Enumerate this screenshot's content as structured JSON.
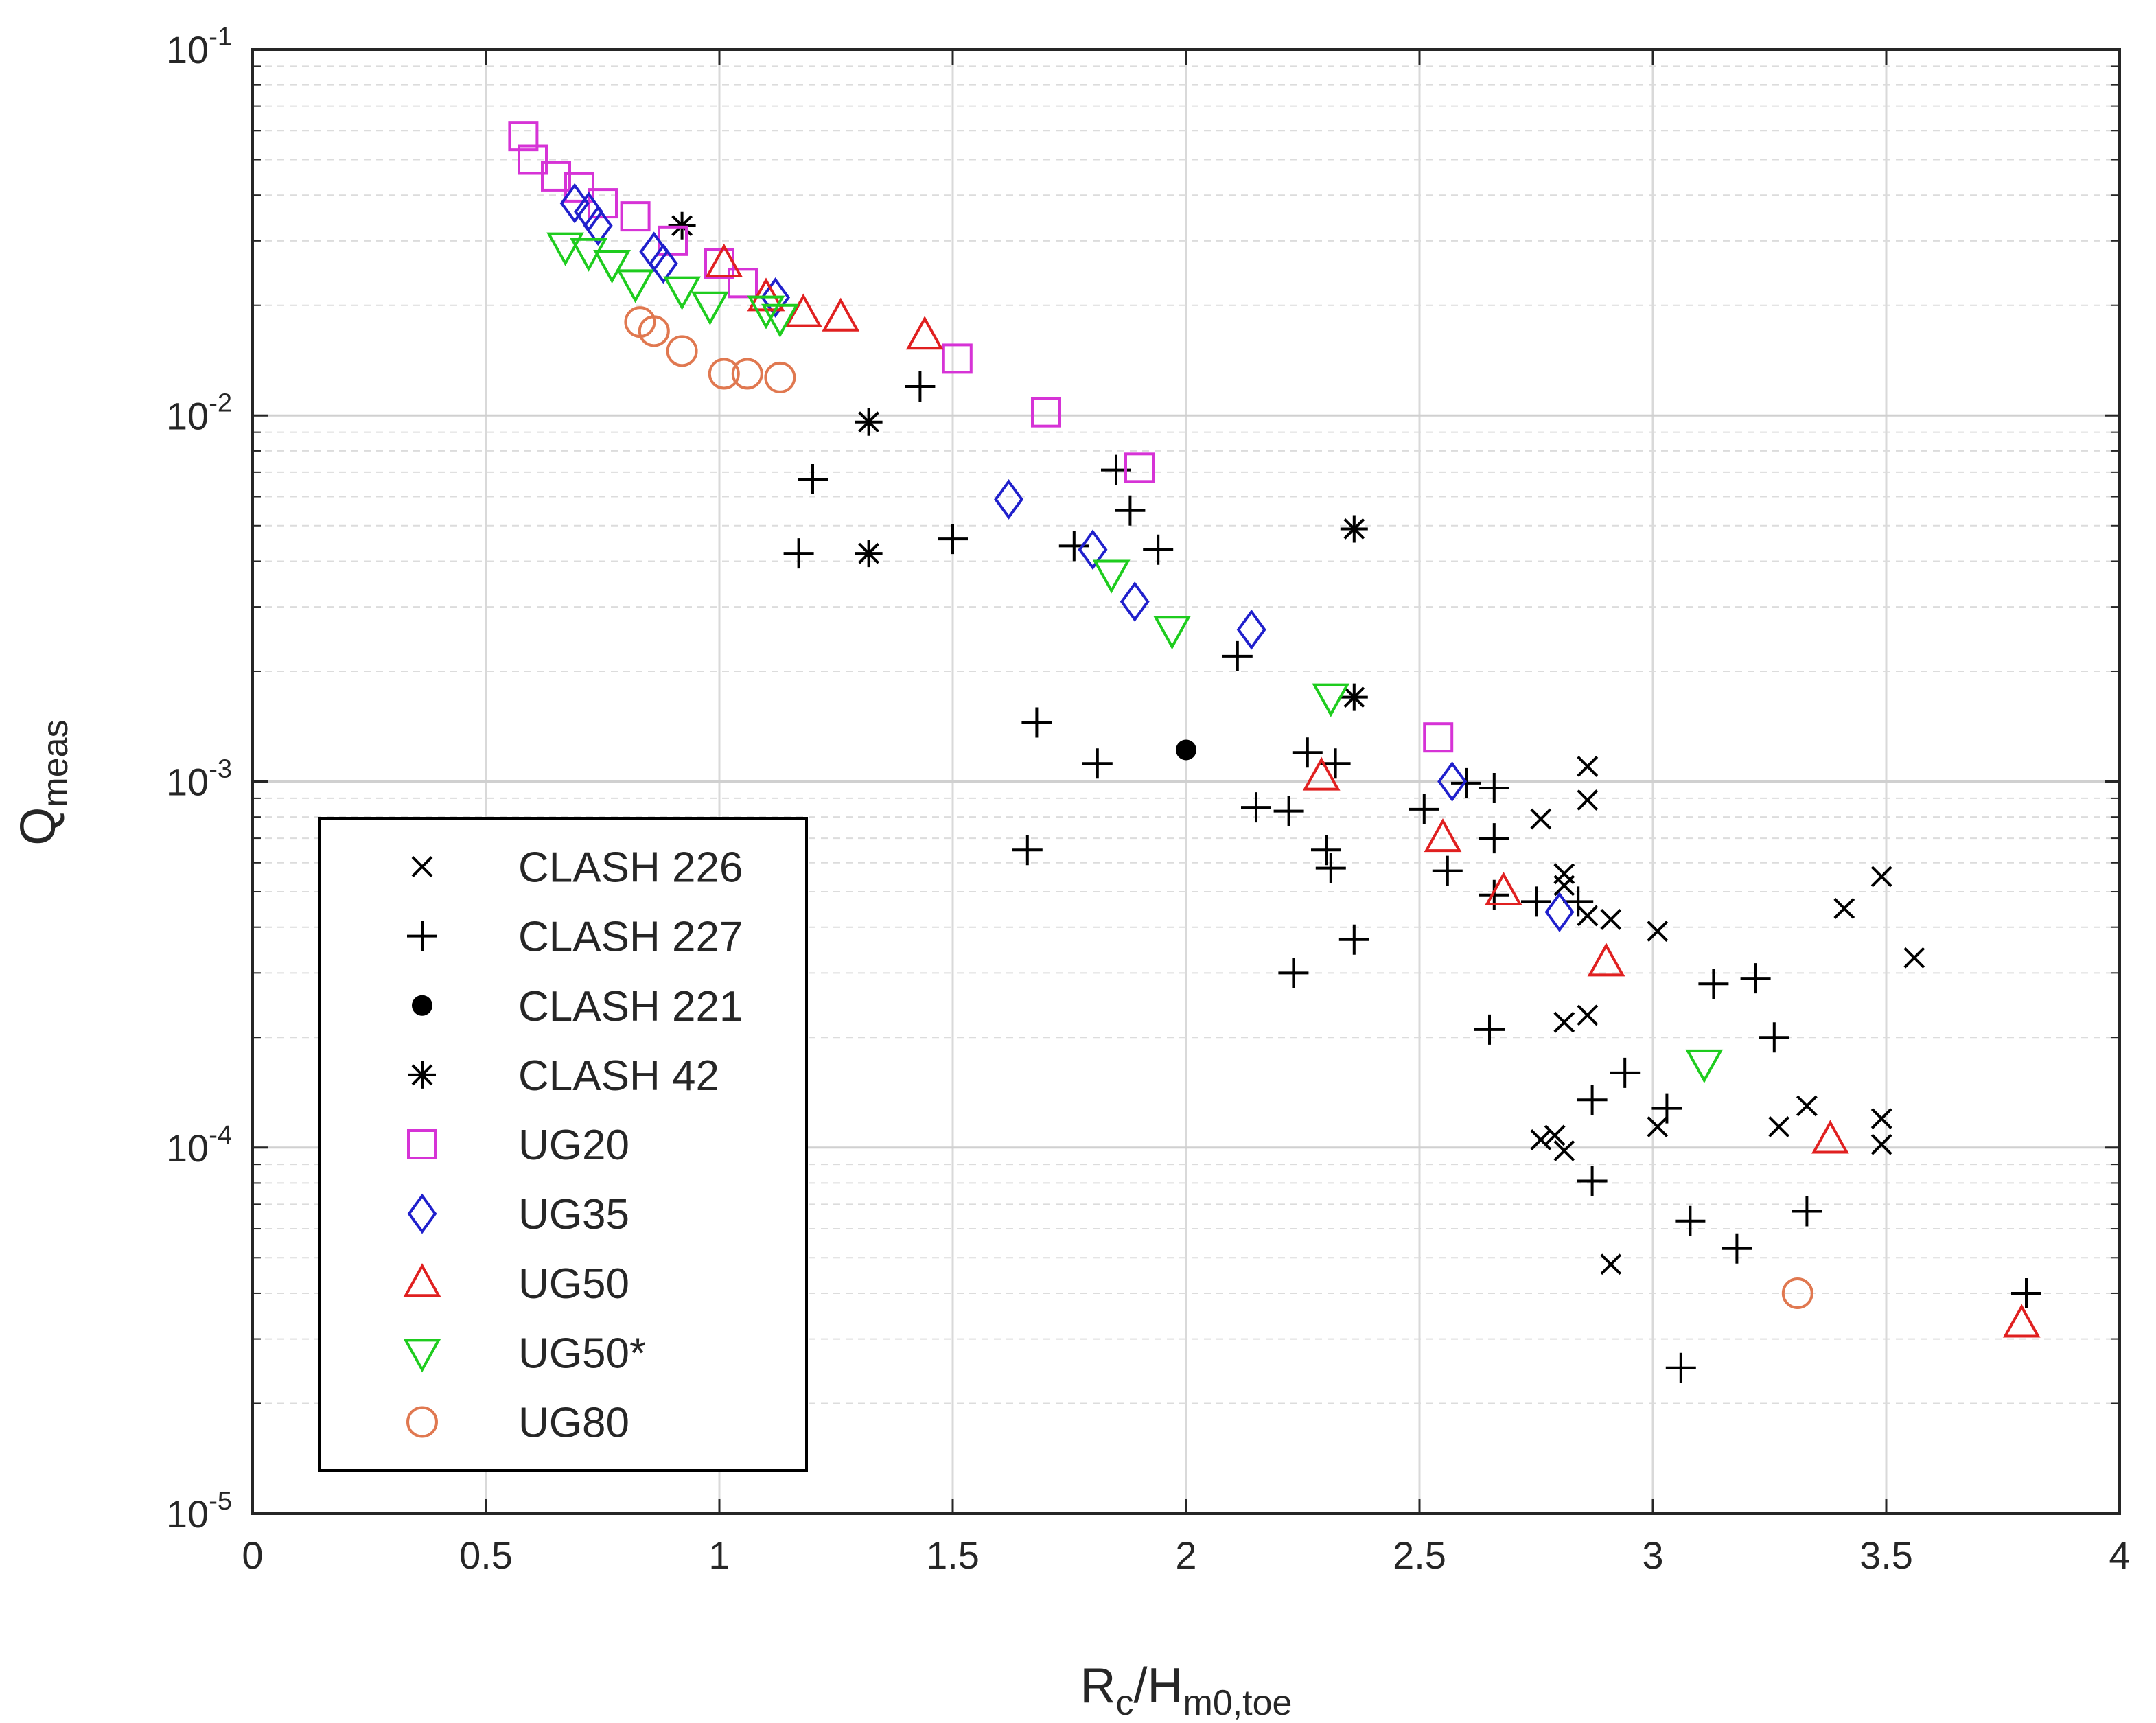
{
  "chart_data": {
    "type": "scatter",
    "title": "",
    "xlabel": "R_c/H_m0,toe",
    "xlabel_parts": {
      "base": "R",
      "sub1": "c",
      "mid": "/H",
      "sub2": "m0,toe"
    },
    "ylabel": "Q_meas",
    "ylabel_parts": {
      "base": "Q",
      "sub": "meas"
    },
    "xscale": "linear",
    "yscale": "log",
    "xlim": [
      0,
      4
    ],
    "ylim": [
      1e-05,
      0.1
    ],
    "xticks": [
      "0",
      "0.5",
      "1",
      "1.5",
      "2",
      "2.5",
      "3",
      "3.5",
      "4"
    ],
    "yticks": [
      {
        "base": "10",
        "exp": "-5"
      },
      {
        "base": "10",
        "exp": "-4"
      },
      {
        "base": "10",
        "exp": "-3"
      },
      {
        "base": "10",
        "exp": "-2"
      },
      {
        "base": "10",
        "exp": "-1"
      }
    ],
    "grid": true,
    "legend_position": "bottom-left",
    "series": [
      {
        "name": "CLASH 226",
        "marker": "x",
        "color": "#000000",
        "points": [
          [
            2.86,
            0.0011
          ],
          [
            2.86,
            0.00089
          ],
          [
            2.76,
            0.00079
          ],
          [
            2.81,
            0.00056
          ],
          [
            2.81,
            0.00052
          ],
          [
            2.86,
            0.00043
          ],
          [
            2.91,
            0.00042
          ],
          [
            3.01,
            0.00039
          ],
          [
            3.41,
            0.00045
          ],
          [
            3.49,
            0.00055
          ],
          [
            3.56,
            0.00033
          ],
          [
            2.81,
            0.00022
          ],
          [
            2.86,
            0.00023
          ],
          [
            3.33,
            0.00013
          ],
          [
            3.49,
            0.00012
          ],
          [
            3.49,
            0.000102
          ],
          [
            3.27,
            0.000114
          ],
          [
            3.01,
            0.000114
          ],
          [
            2.76,
            0.000105
          ],
          [
            2.79,
            0.000108
          ],
          [
            2.81,
            9.8e-05
          ],
          [
            2.91,
            4.8e-05
          ]
        ]
      },
      {
        "name": "CLASH 227",
        "marker": "plus",
        "color": "#000000",
        "points": [
          [
            1.43,
            0.012
          ],
          [
            1.2,
            0.0067
          ],
          [
            1.17,
            0.0042
          ],
          [
            1.5,
            0.0046
          ],
          [
            1.85,
            0.0071
          ],
          [
            1.88,
            0.0055
          ],
          [
            1.76,
            0.0044
          ],
          [
            1.94,
            0.0043
          ],
          [
            1.68,
            0.00145
          ],
          [
            1.81,
            0.00112
          ],
          [
            1.66,
            0.00065
          ],
          [
            2.11,
            0.0022
          ],
          [
            2.26,
            0.0012
          ],
          [
            2.32,
            0.00112
          ],
          [
            2.15,
            0.00085
          ],
          [
            2.22,
            0.00083
          ],
          [
            2.3,
            0.00065
          ],
          [
            2.31,
            0.00058
          ],
          [
            2.36,
            0.00037
          ],
          [
            2.23,
            0.0003
          ],
          [
            2.51,
            0.00084
          ],
          [
            2.6,
            0.00099
          ],
          [
            2.66,
            0.00096
          ],
          [
            2.56,
            0.00057
          ],
          [
            2.66,
            0.0007
          ],
          [
            2.66,
            0.00049
          ],
          [
            2.75,
            0.00047
          ],
          [
            2.84,
            0.00047
          ],
          [
            2.65,
            0.00021
          ],
          [
            2.94,
            0.00016
          ],
          [
            3.03,
            0.000128
          ],
          [
            2.87,
            0.000135
          ],
          [
            2.87,
            8.1e-05
          ],
          [
            3.13,
            0.00028
          ],
          [
            3.22,
            0.00029
          ],
          [
            3.26,
            0.0002
          ],
          [
            3.08,
            6.3e-05
          ],
          [
            3.18,
            5.3e-05
          ],
          [
            3.33,
            6.7e-05
          ],
          [
            3.06,
            2.5e-05
          ],
          [
            3.8,
            4e-05
          ]
        ]
      },
      {
        "name": "CLASH 221",
        "marker": "dot",
        "color": "#000000",
        "points": [
          [
            2.0,
            0.00122
          ]
        ]
      },
      {
        "name": "CLASH 42",
        "marker": "asterisk",
        "color": "#000000",
        "points": [
          [
            0.92,
            0.033
          ],
          [
            1.32,
            0.0096
          ],
          [
            1.32,
            0.0042
          ],
          [
            2.36,
            0.0049
          ],
          [
            2.36,
            0.0017
          ]
        ]
      },
      {
        "name": "UG20",
        "marker": "square",
        "color": "#d633d6",
        "points": [
          [
            0.58,
            0.058
          ],
          [
            0.6,
            0.05
          ],
          [
            0.65,
            0.045
          ],
          [
            0.7,
            0.042
          ],
          [
            0.75,
            0.038
          ],
          [
            0.82,
            0.035
          ],
          [
            0.9,
            0.03
          ],
          [
            1.0,
            0.026
          ],
          [
            1.05,
            0.023
          ],
          [
            1.51,
            0.0143
          ],
          [
            1.7,
            0.0102
          ],
          [
            1.9,
            0.0072
          ],
          [
            2.54,
            0.00132
          ]
        ]
      },
      {
        "name": "UG35",
        "marker": "diamond",
        "color": "#2020cc",
        "points": [
          [
            0.69,
            0.038
          ],
          [
            0.72,
            0.036
          ],
          [
            0.74,
            0.033
          ],
          [
            0.86,
            0.028
          ],
          [
            0.88,
            0.026
          ],
          [
            1.12,
            0.021
          ],
          [
            1.62,
            0.0059
          ],
          [
            1.8,
            0.0043
          ],
          [
            1.89,
            0.0031
          ],
          [
            2.14,
            0.0026
          ],
          [
            2.57,
            0.001
          ],
          [
            2.8,
            0.00044
          ]
        ]
      },
      {
        "name": "UG50",
        "marker": "triangle-up",
        "color": "#e02020",
        "points": [
          [
            1.01,
            0.026
          ],
          [
            1.1,
            0.021
          ],
          [
            1.18,
            0.019
          ],
          [
            1.26,
            0.0185
          ],
          [
            1.44,
            0.0165
          ],
          [
            2.29,
            0.00103
          ],
          [
            2.55,
            0.0007
          ],
          [
            2.68,
            0.0005
          ],
          [
            2.9,
            0.00032
          ],
          [
            3.38,
            0.000105
          ],
          [
            3.79,
            3.3e-05
          ]
        ]
      },
      {
        "name": "UG50*",
        "marker": "triangle-down",
        "color": "#1ecc1e",
        "points": [
          [
            0.67,
            0.029
          ],
          [
            0.72,
            0.028
          ],
          [
            0.77,
            0.026
          ],
          [
            0.82,
            0.023
          ],
          [
            0.92,
            0.022
          ],
          [
            0.98,
            0.02
          ],
          [
            1.1,
            0.0195
          ],
          [
            1.13,
            0.0185
          ],
          [
            1.84,
            0.0037
          ],
          [
            1.97,
            0.0026
          ],
          [
            2.31,
            0.0017
          ],
          [
            3.11,
            0.00017
          ]
        ]
      },
      {
        "name": "UG80",
        "marker": "circle",
        "color": "#e07850",
        "points": [
          [
            0.83,
            0.018
          ],
          [
            0.86,
            0.017
          ],
          [
            0.92,
            0.015
          ],
          [
            1.01,
            0.013
          ],
          [
            1.06,
            0.013
          ],
          [
            1.13,
            0.0127
          ],
          [
            3.31,
            4e-05
          ]
        ]
      }
    ]
  }
}
